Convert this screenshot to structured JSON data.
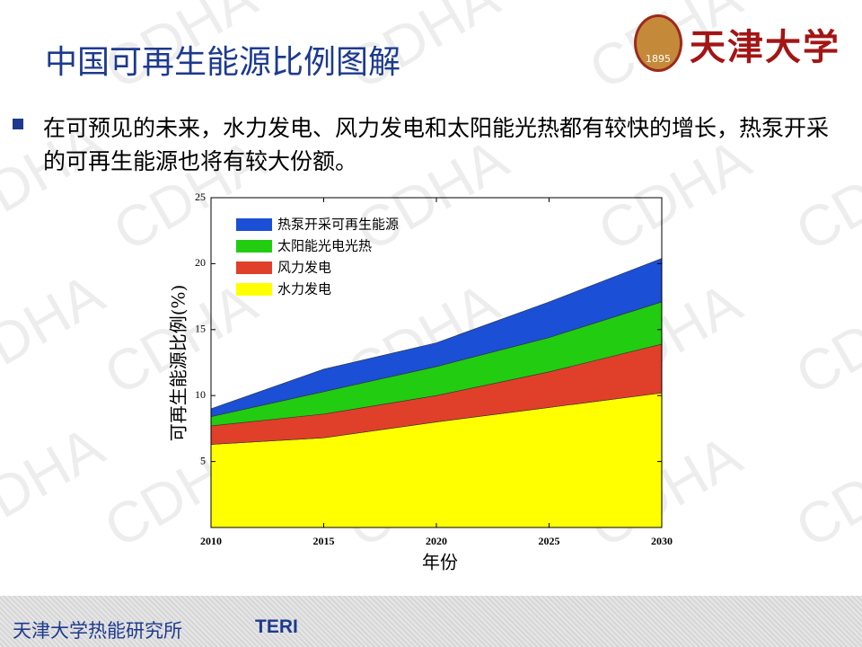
{
  "title": "中国可再生能源比例图解",
  "bullet": "在可预见的未来，水力发电、风力发电和太阳能光热都有较快的增长，热泵开采的可再生能源也将有较大份额。",
  "logo": {
    "name": "天津大学",
    "year": "1895"
  },
  "footer": {
    "org": "天津大学热能研究所",
    "abbr": "TERI"
  },
  "watermark": "CDHA",
  "chart_data": {
    "type": "stacked_area",
    "x_label": "年份",
    "y_label": "可再生能源比例(%)",
    "x": [
      2010,
      2015,
      2020,
      2025,
      2030
    ],
    "xlim": [
      2010,
      2030
    ],
    "xticks": [
      2010,
      2015,
      2020,
      2025,
      2030
    ],
    "ylim": [
      0,
      25
    ],
    "yticks": [
      5,
      10,
      15,
      20,
      25
    ],
    "legend": "upper left",
    "series": [
      {
        "name": "水力发电",
        "color": "#ffff00",
        "values": [
          6.3,
          6.8,
          8.0,
          9.1,
          10.2
        ]
      },
      {
        "name": "风力发电",
        "color": "#e0402a",
        "values": [
          1.4,
          1.8,
          2.0,
          2.7,
          3.7
        ]
      },
      {
        "name": "太阳能光电光热",
        "color": "#22cc11",
        "values": [
          0.7,
          1.7,
          2.2,
          2.6,
          3.2
        ]
      },
      {
        "name": "热泵开采可再生能源",
        "color": "#1a4fd6",
        "values": [
          0.6,
          1.7,
          1.8,
          2.7,
          3.3
        ]
      }
    ]
  }
}
